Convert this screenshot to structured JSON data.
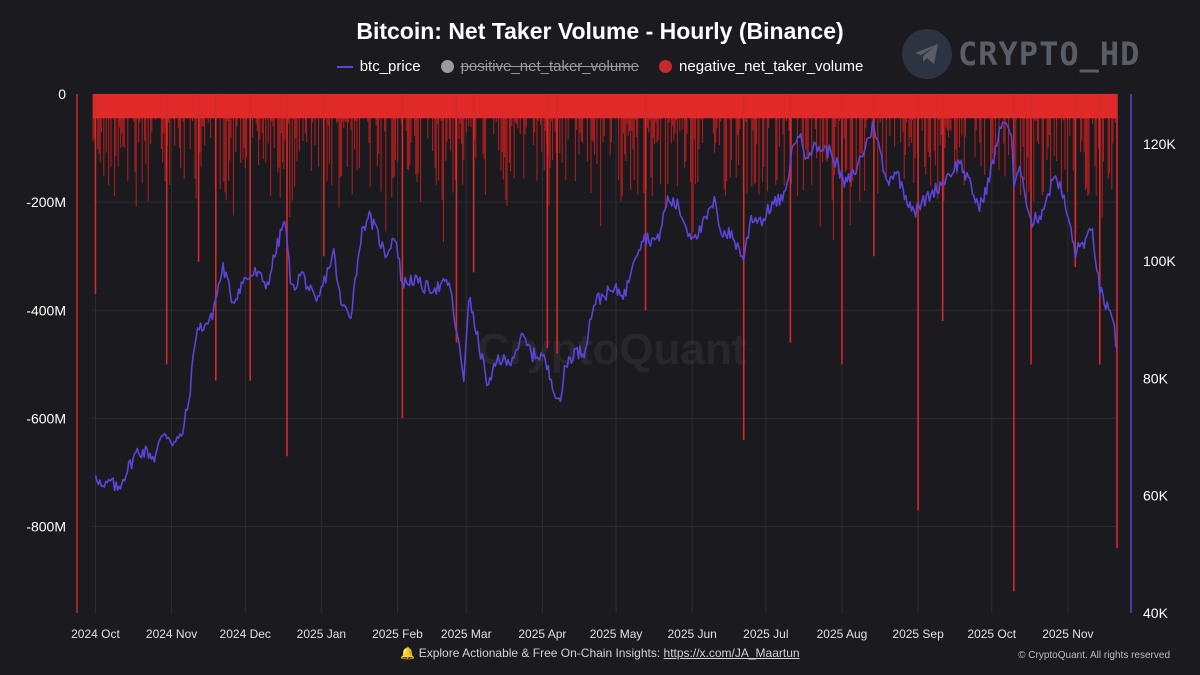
{
  "header": {
    "title": "Bitcoin: Net Taker Volume - Hourly (Binance)",
    "brand": "CRYPTO_HD"
  },
  "legend": [
    {
      "label": "btc_price",
      "color": "#5b45d8",
      "marker": "line",
      "hidden": false
    },
    {
      "label": "positive_net_taker_volume",
      "color": "#9a9aa0",
      "marker": "dot",
      "hidden": true
    },
    {
      "label": "negative_net_taker_volume",
      "color": "#c42a2a",
      "marker": "dot",
      "hidden": false
    }
  ],
  "watermark": "CryptoQuant",
  "footer": {
    "bell_icon": "bell-icon",
    "text": "Explore Actionable & Free On-Chain Insights:",
    "link": "https://x.com/JA_Maartun",
    "copyright": "© CryptoQuant. All rights reserved"
  },
  "colors": {
    "background": "#1a1a1f",
    "price_line": "#5b45d8",
    "negative_bars": "#d42a2a",
    "grid": "#2c2c33"
  },
  "chart_data": {
    "type": "bar+line",
    "title": "Bitcoin: Net Taker Volume - Hourly (Binance)",
    "x_ticks": [
      "2024 Oct",
      "2024 Nov",
      "2024 Dec",
      "2025 Jan",
      "2025 Feb",
      "2025 Mar",
      "2025 Apr",
      "2025 May",
      "2025 Jun",
      "2025 Jul",
      "2025 Aug",
      "2025 Sep",
      "2025 Oct",
      "2025 Nov"
    ],
    "x_range": [
      "2024-09-30",
      "2025-11-21"
    ],
    "left_axis": {
      "label": "",
      "ticks": [
        "0",
        "-200M",
        "-400M",
        "-600M",
        "-800M"
      ],
      "tick_values": [
        0,
        -200,
        -400,
        -600,
        -800
      ],
      "unit": "M",
      "range": [
        -960,
        0
      ]
    },
    "right_axis": {
      "label": "",
      "ticks": [
        "40K",
        "60K",
        "80K",
        "100K",
        "120K"
      ],
      "tick_values": [
        40,
        60,
        80,
        100,
        120
      ],
      "unit": "K",
      "range": [
        40,
        128.5
      ]
    },
    "grid": true,
    "legend_position": "top-center",
    "series": [
      {
        "name": "btc_price",
        "axis": "right",
        "type": "line",
        "points": [
          [
            "2024-10-01",
            64
          ],
          [
            "2024-10-04",
            61
          ],
          [
            "2024-10-07",
            62.5
          ],
          [
            "2024-10-10",
            61
          ],
          [
            "2024-10-14",
            64.5
          ],
          [
            "2024-10-18",
            67.5
          ],
          [
            "2024-10-22",
            67.5
          ],
          [
            "2024-10-25",
            66.5
          ],
          [
            "2024-10-29",
            71
          ],
          [
            "2024-11-02",
            69
          ],
          [
            "2024-11-05",
            70
          ],
          [
            "2024-11-08",
            76
          ],
          [
            "2024-11-11",
            88
          ],
          [
            "2024-11-14",
            89
          ],
          [
            "2024-11-17",
            90
          ],
          [
            "2024-11-22",
            99
          ],
          [
            "2024-11-26",
            93
          ],
          [
            "2024-11-30",
            96.5
          ],
          [
            "2024-12-05",
            98
          ],
          [
            "2024-12-10",
            96
          ],
          [
            "2024-12-13",
            101
          ],
          [
            "2024-12-17",
            107
          ],
          [
            "2024-12-20",
            95
          ],
          [
            "2024-12-24",
            98
          ],
          [
            "2024-12-30",
            92.5
          ],
          [
            "2025-01-06",
            101.5
          ],
          [
            "2025-01-09",
            92.5
          ],
          [
            "2025-01-13",
            91
          ],
          [
            "2025-01-17",
            104
          ],
          [
            "2025-01-20",
            108
          ],
          [
            "2025-01-24",
            104.5
          ],
          [
            "2025-01-27",
            101
          ],
          [
            "2025-01-31",
            104.5
          ],
          [
            "2025-02-03",
            96
          ],
          [
            "2025-02-07",
            97
          ],
          [
            "2025-02-12",
            95.5
          ],
          [
            "2025-02-18",
            95.5
          ],
          [
            "2025-02-22",
            96.5
          ],
          [
            "2025-02-25",
            88
          ],
          [
            "2025-02-28",
            80
          ],
          [
            "2025-03-02",
            94
          ],
          [
            "2025-03-05",
            88
          ],
          [
            "2025-03-10",
            78.5
          ],
          [
            "2025-03-14",
            83.5
          ],
          [
            "2025-03-18",
            82.5
          ],
          [
            "2025-03-24",
            87
          ],
          [
            "2025-03-28",
            84
          ],
          [
            "2025-04-01",
            84
          ],
          [
            "2025-04-07",
            77
          ],
          [
            "2025-04-09",
            76.5
          ],
          [
            "2025-04-10",
            82
          ],
          [
            "2025-04-14",
            84.5
          ],
          [
            "2025-04-18",
            84.5
          ],
          [
            "2025-04-22",
            93
          ],
          [
            "2025-04-27",
            94.5
          ],
          [
            "2025-05-01",
            95
          ],
          [
            "2025-05-05",
            94.5
          ],
          [
            "2025-05-08",
            100.5
          ],
          [
            "2025-05-12",
            104
          ],
          [
            "2025-05-18",
            103.5
          ],
          [
            "2025-05-22",
            110.5
          ],
          [
            "2025-05-26",
            109.5
          ],
          [
            "2025-05-31",
            104.5
          ],
          [
            "2025-06-04",
            105
          ],
          [
            "2025-06-10",
            110
          ],
          [
            "2025-06-13",
            105
          ],
          [
            "2025-06-17",
            104.5
          ],
          [
            "2025-06-22",
            100.5
          ],
          [
            "2025-06-25",
            107.5
          ],
          [
            "2025-06-30",
            107
          ],
          [
            "2025-07-03",
            109.5
          ],
          [
            "2025-07-09",
            111
          ],
          [
            "2025-07-11",
            117.5
          ],
          [
            "2025-07-14",
            122
          ],
          [
            "2025-07-17",
            118.5
          ],
          [
            "2025-07-22",
            119.5
          ],
          [
            "2025-07-28",
            118.5
          ],
          [
            "2025-08-02",
            113
          ],
          [
            "2025-08-06",
            115
          ],
          [
            "2025-08-10",
            119
          ],
          [
            "2025-08-14",
            123.5
          ],
          [
            "2025-08-19",
            113.5
          ],
          [
            "2025-08-23",
            115.5
          ],
          [
            "2025-08-27",
            111
          ],
          [
            "2025-08-31",
            108.5
          ],
          [
            "2025-09-05",
            111
          ],
          [
            "2025-09-10",
            113
          ],
          [
            "2025-09-15",
            115.5
          ],
          [
            "2025-09-18",
            117
          ],
          [
            "2025-09-22",
            113
          ],
          [
            "2025-09-26",
            109
          ],
          [
            "2025-09-30",
            114
          ],
          [
            "2025-10-03",
            120
          ],
          [
            "2025-10-06",
            124.5
          ],
          [
            "2025-10-09",
            121.5
          ],
          [
            "2025-10-10",
            113
          ],
          [
            "2025-10-13",
            115.5
          ],
          [
            "2025-10-17",
            106.5
          ],
          [
            "2025-10-21",
            108
          ],
          [
            "2025-10-27",
            115
          ],
          [
            "2025-10-31",
            109.5
          ],
          [
            "2025-11-04",
            101.5
          ],
          [
            "2025-11-07",
            103
          ],
          [
            "2025-11-11",
            105
          ],
          [
            "2025-11-14",
            95
          ],
          [
            "2025-11-17",
            92
          ],
          [
            "2025-11-20",
            88
          ],
          [
            "2025-11-21",
            85
          ]
        ]
      },
      {
        "name": "negative_net_taker_volume",
        "axis": "left",
        "type": "bar",
        "notable_spikes": [
          [
            "2024-10-01",
            -370
          ],
          [
            "2024-10-30",
            -500
          ],
          [
            "2024-11-12",
            -310
          ],
          [
            "2024-11-19",
            -530
          ],
          [
            "2024-12-03",
            -530
          ],
          [
            "2024-12-18",
            -670
          ],
          [
            "2025-01-02",
            -300
          ],
          [
            "2025-02-03",
            -600
          ],
          [
            "2025-02-25",
            -460
          ],
          [
            "2025-03-04",
            -330
          ],
          [
            "2025-04-03",
            -470
          ],
          [
            "2025-04-07",
            -480
          ],
          [
            "2025-05-13",
            -400
          ],
          [
            "2025-06-22",
            -640
          ],
          [
            "2025-07-11",
            -460
          ],
          [
            "2025-08-01",
            -500
          ],
          [
            "2025-08-14",
            -300
          ],
          [
            "2025-09-01",
            -770
          ],
          [
            "2025-09-11",
            -420
          ],
          [
            "2025-10-10",
            -920
          ],
          [
            "2025-10-17",
            -500
          ],
          [
            "2025-11-04",
            -320
          ],
          [
            "2025-11-14",
            -500
          ],
          [
            "2025-11-21",
            -840
          ]
        ],
        "typical_range": [
          -200,
          0
        ]
      },
      {
        "name": "positive_net_taker_volume",
        "axis": "left",
        "type": "bar",
        "hidden": true
      }
    ]
  }
}
